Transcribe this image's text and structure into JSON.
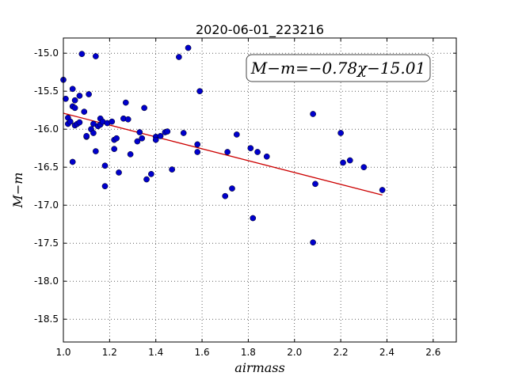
{
  "chart_data": {
    "type": "scatter",
    "title": "2020-06-01_223216",
    "xlabel": "airmass",
    "ylabel": "M−m",
    "xlim": [
      1.0,
      2.7
    ],
    "ylim": [
      -18.8,
      -14.8
    ],
    "xticks": [
      "1.0",
      "1.2",
      "1.4",
      "1.6",
      "1.8",
      "2.0",
      "2.2",
      "2.4",
      "2.6"
    ],
    "yticks": [
      "-15.0",
      "-15.5",
      "-16.0",
      "-16.5",
      "-17.0",
      "-17.5",
      "-18.0",
      "-18.5"
    ],
    "grid": true,
    "point_color": "#0000cc",
    "fit_color": "#cc0000",
    "fit": {
      "slope": -0.78,
      "intercept": -15.01,
      "x_start": 1.0,
      "x_end": 2.38
    },
    "annotation": "M−m=−0.78χ−15.01",
    "points": [
      [
        1.0,
        -15.35
      ],
      [
        1.01,
        -15.6
      ],
      [
        1.02,
        -15.85
      ],
      [
        1.02,
        -15.93
      ],
      [
        1.03,
        -15.9
      ],
      [
        1.04,
        -15.7
      ],
      [
        1.04,
        -16.43
      ],
      [
        1.04,
        -15.47
      ],
      [
        1.05,
        -15.95
      ],
      [
        1.05,
        -15.72
      ],
      [
        1.05,
        -15.62
      ],
      [
        1.06,
        -15.93
      ],
      [
        1.07,
        -15.91
      ],
      [
        1.07,
        -15.56
      ],
      [
        1.08,
        -15.01
      ],
      [
        1.09,
        -15.77
      ],
      [
        1.1,
        -16.1
      ],
      [
        1.1,
        -16.09
      ],
      [
        1.11,
        -15.54
      ],
      [
        1.12,
        -16.0
      ],
      [
        1.13,
        -15.93
      ],
      [
        1.13,
        -16.05
      ],
      [
        1.14,
        -15.04
      ],
      [
        1.14,
        -16.29
      ],
      [
        1.15,
        -15.96
      ],
      [
        1.16,
        -15.86
      ],
      [
        1.16,
        -15.94
      ],
      [
        1.17,
        -15.9
      ],
      [
        1.18,
        -16.48
      ],
      [
        1.18,
        -16.75
      ],
      [
        1.19,
        -15.92
      ],
      [
        1.21,
        -15.9
      ],
      [
        1.22,
        -16.26
      ],
      [
        1.22,
        -16.14
      ],
      [
        1.23,
        -16.12
      ],
      [
        1.24,
        -16.57
      ],
      [
        1.26,
        -15.86
      ],
      [
        1.27,
        -15.65
      ],
      [
        1.28,
        -15.87
      ],
      [
        1.29,
        -16.33
      ],
      [
        1.32,
        -16.16
      ],
      [
        1.33,
        -16.04
      ],
      [
        1.34,
        -16.12
      ],
      [
        1.35,
        -15.72
      ],
      [
        1.36,
        -16.66
      ],
      [
        1.38,
        -16.59
      ],
      [
        1.4,
        -16.1
      ],
      [
        1.4,
        -16.14
      ],
      [
        1.42,
        -16.09
      ],
      [
        1.44,
        -16.04
      ],
      [
        1.45,
        -16.03
      ],
      [
        1.47,
        -16.53
      ],
      [
        1.5,
        -15.05
      ],
      [
        1.52,
        -16.05
      ],
      [
        1.54,
        -14.93
      ],
      [
        1.58,
        -16.3
      ],
      [
        1.58,
        -16.2
      ],
      [
        1.59,
        -15.5
      ],
      [
        1.7,
        -16.88
      ],
      [
        1.71,
        -16.3
      ],
      [
        1.73,
        -16.78
      ],
      [
        1.75,
        -16.07
      ],
      [
        1.81,
        -16.25
      ],
      [
        1.82,
        -17.17
      ],
      [
        1.84,
        -16.3
      ],
      [
        1.88,
        -16.36
      ],
      [
        2.08,
        -15.8
      ],
      [
        2.08,
        -17.49
      ],
      [
        2.09,
        -16.72
      ],
      [
        2.2,
        -16.05
      ],
      [
        2.21,
        -16.44
      ],
      [
        2.24,
        -16.41
      ],
      [
        2.3,
        -16.5
      ],
      [
        2.38,
        -16.8
      ]
    ]
  }
}
